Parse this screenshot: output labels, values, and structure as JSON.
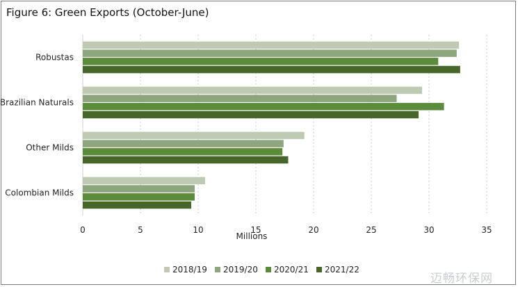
{
  "chart_data": {
    "type": "bar",
    "orientation": "horizontal",
    "title": "Figure 6: Green Exports (October-June)",
    "xlabel": "Millions",
    "ylabel": "",
    "xlim": [
      0,
      35
    ],
    "xticks": [
      0,
      5,
      10,
      15,
      20,
      25,
      30,
      35
    ],
    "grid": "vertical dotted",
    "legend_position": "bottom",
    "categories": [
      "Robustas",
      "Brazilian Naturals",
      "Other Milds",
      "Colombian Milds"
    ],
    "series": [
      {
        "name": "2018/19",
        "color": "#bfcab3",
        "values": [
          32.6,
          29.4,
          19.2,
          10.6
        ]
      },
      {
        "name": "2019/20",
        "color": "#8ea67d",
        "values": [
          32.4,
          27.2,
          17.4,
          9.7
        ]
      },
      {
        "name": "2020/21",
        "color": "#5b8c3b",
        "values": [
          30.8,
          31.3,
          17.3,
          9.7
        ]
      },
      {
        "name": "2021/22",
        "color": "#47662a",
        "values": [
          32.7,
          29.1,
          17.8,
          9.4
        ]
      }
    ]
  },
  "watermark": "迈畅环保网"
}
